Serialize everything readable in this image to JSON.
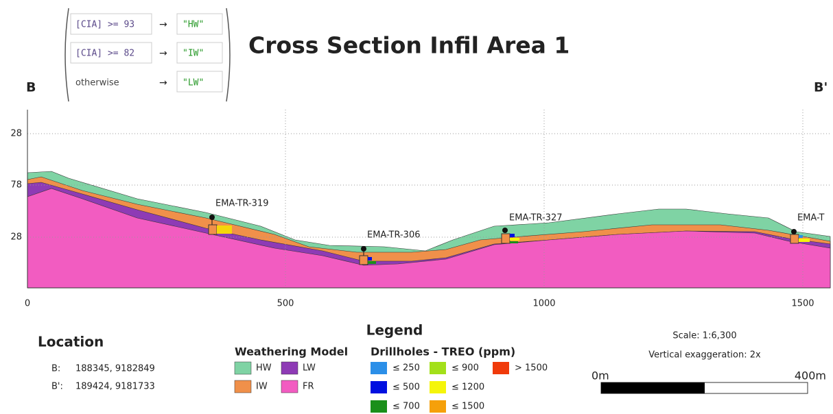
{
  "expression": {
    "rows": [
      {
        "condition": "[CIA] >= 93",
        "result": "\"HW\""
      },
      {
        "condition": "[CIA] >= 82",
        "result": "\"IW\""
      },
      {
        "condition": "otherwise",
        "result": "\"LW\""
      }
    ]
  },
  "title": "Cross Section Infil Area 1",
  "section": {
    "start": "B",
    "end": "B'"
  },
  "axis": {
    "y_ticks": [
      "28",
      "78",
      "28"
    ],
    "x_ticks": [
      "0",
      "500",
      "1000",
      "1500"
    ]
  },
  "drillholes": [
    "EMA-TR-319",
    "EMA-TR-306",
    "EMA-TR-327",
    "EMA-T"
  ],
  "legend": {
    "title": "Legend",
    "weathering": {
      "title": "Weathering Model",
      "items": [
        "HW",
        "LW",
        "IW",
        "FR"
      ]
    },
    "drillholes": {
      "title": "Drillholes - TREO (ppm)",
      "items": [
        "≤ 250",
        "≤ 900",
        "> 1500",
        "≤ 500",
        "≤ 1200",
        "≤ 700",
        "≤ 1500"
      ]
    }
  },
  "location": {
    "title": "Location",
    "rows": [
      {
        "label": "B:",
        "coords": "188345, 9182849"
      },
      {
        "label": "B':",
        "coords": "189424, 9181733"
      }
    ]
  },
  "scale": {
    "ratio": "Scale: 1:6,300",
    "exaggeration": "Vertical exaggeration: 2x",
    "start": "0m",
    "end": "400m"
  }
}
